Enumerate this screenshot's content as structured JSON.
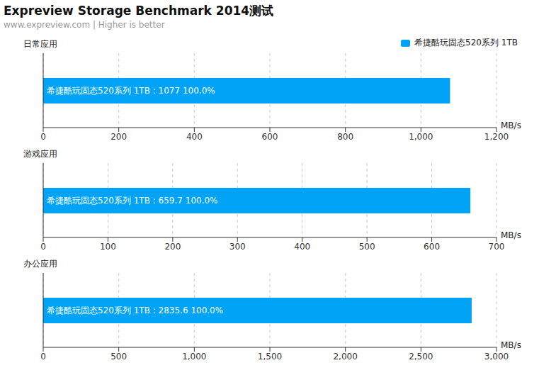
{
  "title": "Expreview Storage Benchmark 2014测试",
  "subtitle": "www.expreview.com | Higher is better",
  "chart_data": [
    {
      "type": "bar",
      "title": "日常应用",
      "orientation": "horizontal",
      "categories": [
        null
      ],
      "series": [
        {
          "name": "希捷酷玩固态520系列 1TB",
          "color": "#00a3f5",
          "values": [
            1077
          ],
          "value_labels": [
            "希捷酷玩固态520系列 1TB : 1077  100.0%"
          ]
        }
      ],
      "xlabel": "MB/s",
      "xlim": [
        0,
        1200
      ],
      "xticks": [
        0,
        200,
        400,
        600,
        800,
        {
          "value": 1000,
          "label": "1,000"
        },
        {
          "value": 1200,
          "label": "1,200"
        }
      ],
      "grid": true,
      "data_labels": true,
      "legend": "top-right"
    },
    {
      "type": "bar",
      "title": "游戏应用",
      "orientation": "horizontal",
      "categories": [
        null
      ],
      "series": [
        {
          "name": "希捷酷玩固态520系列 1TB",
          "color": "#00a3f5",
          "values": [
            659.7
          ],
          "value_labels": [
            "希捷酷玩固态520系列 1TB : 659.7  100.0%"
          ]
        }
      ],
      "xlabel": "MB/s",
      "xlim": [
        0,
        700
      ],
      "xticks": [
        0,
        100,
        200,
        300,
        400,
        500,
        600,
        700
      ],
      "grid": true,
      "data_labels": true
    },
    {
      "type": "bar",
      "title": "办公应用",
      "orientation": "horizontal",
      "categories": [
        null
      ],
      "series": [
        {
          "name": "希捷酷玩固态520系列 1TB",
          "color": "#00a3f5",
          "values": [
            2835.6
          ],
          "value_labels": [
            "希捷酷玩固态520系列 1TB : 2835.6  100.0%"
          ]
        }
      ],
      "xlabel": "MB/s",
      "xlim": [
        0,
        3000
      ],
      "xticks": [
        0,
        500,
        {
          "value": 1000,
          "label": "1,000"
        },
        {
          "value": 1500,
          "label": "1,500"
        },
        {
          "value": 2000,
          "label": "2,000"
        },
        {
          "value": 2500,
          "label": "2,500"
        },
        {
          "value": 3000,
          "label": "3,000"
        }
      ],
      "grid": true,
      "data_labels": true
    }
  ]
}
